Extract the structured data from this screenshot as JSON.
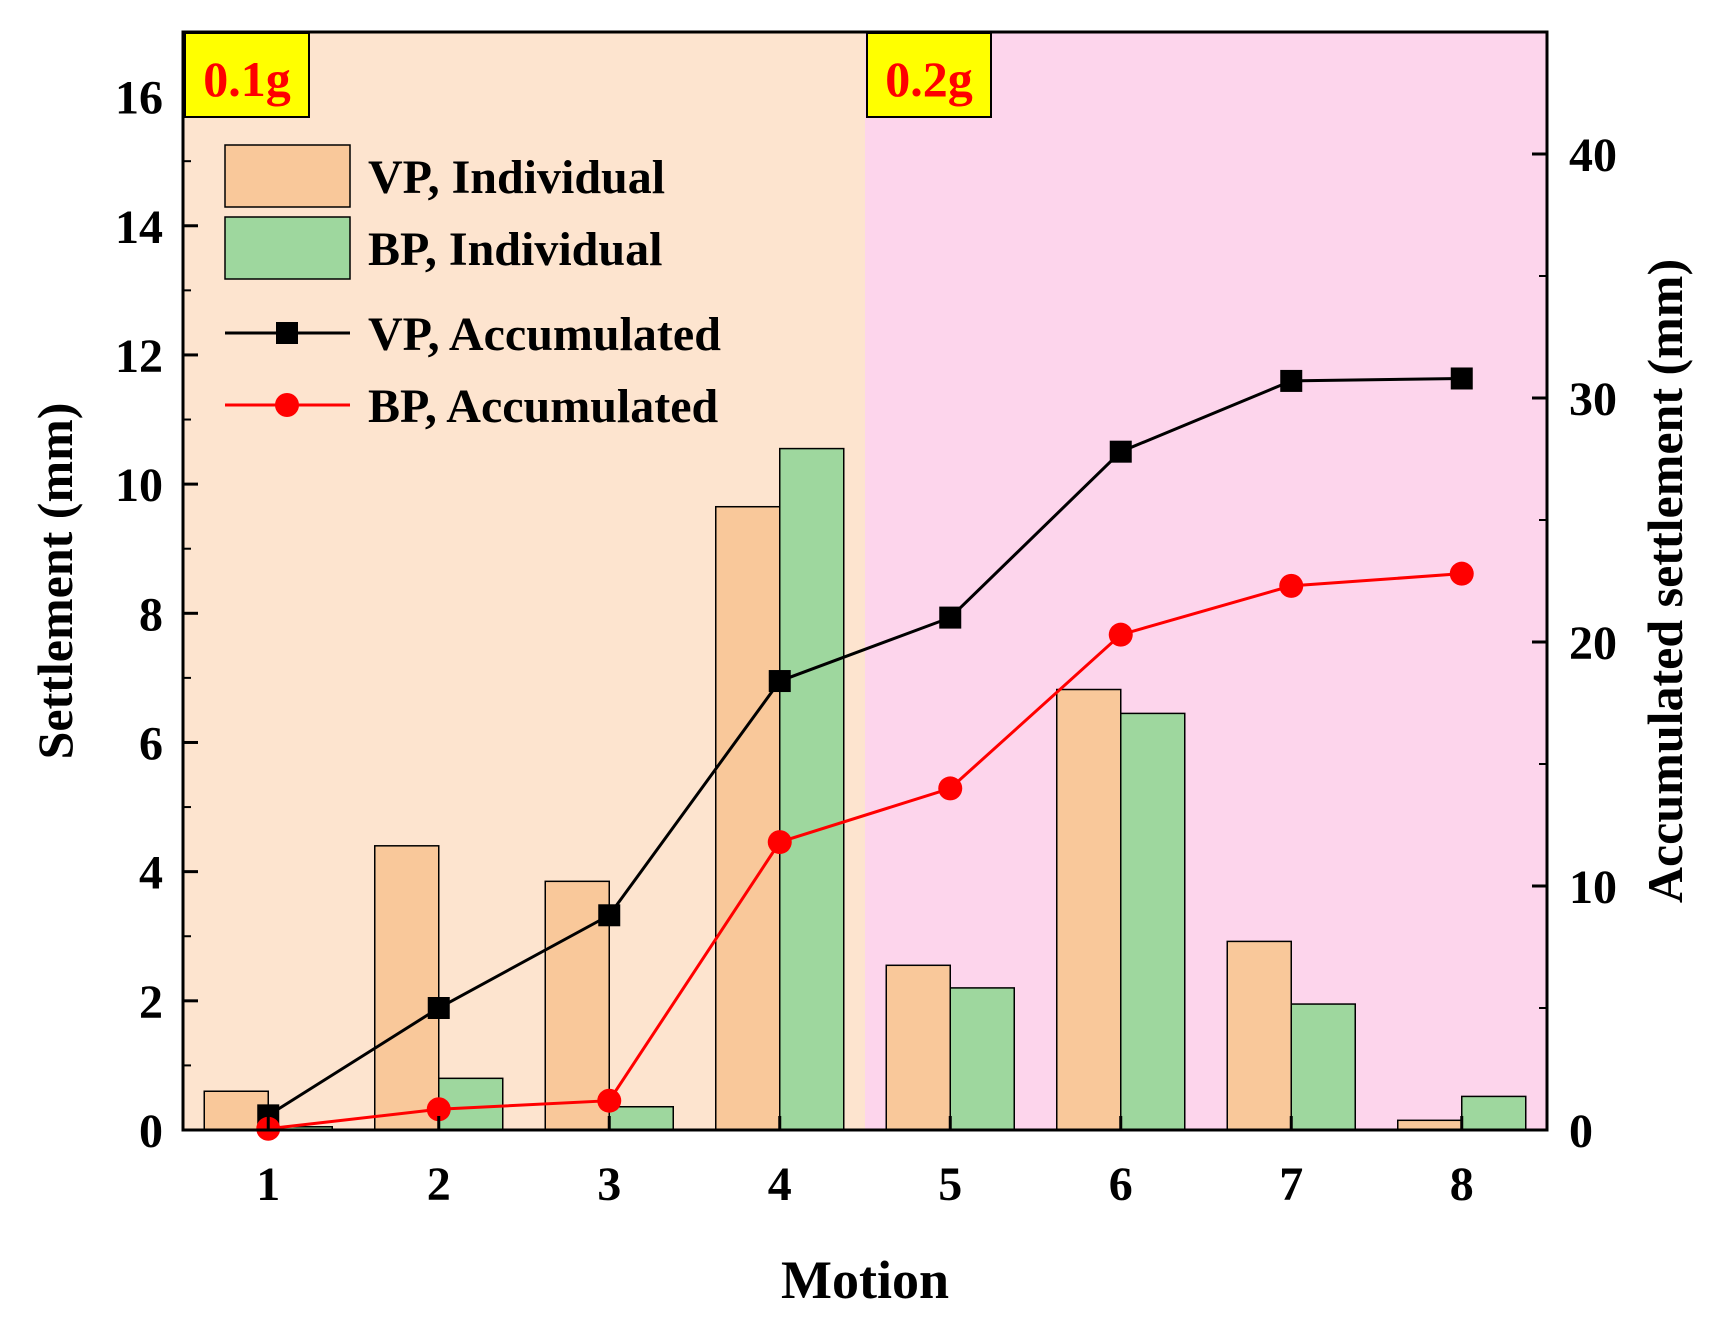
{
  "chart_data": {
    "type": "bar",
    "xlabel": "Motion",
    "ylabel": "Settlement (mm)",
    "y2label": "Accumulated settlement (mm)",
    "categories": [
      "1",
      "2",
      "3",
      "4",
      "5",
      "6",
      "7",
      "8"
    ],
    "ylim": [
      0,
      17
    ],
    "yticks": [
      0,
      2,
      4,
      6,
      8,
      10,
      12,
      14,
      16
    ],
    "y2lim": [
      0,
      45
    ],
    "y2ticks": [
      0,
      10,
      20,
      30,
      40
    ],
    "regions": [
      {
        "label": "0.1g",
        "from": 0.5,
        "to": 4.5,
        "color": "#fde4cf"
      },
      {
        "label": "0.2g",
        "from": 4.5,
        "to": 8.5,
        "color": "#fdd5ec"
      }
    ],
    "bar_series": [
      {
        "name": "VP, Individual",
        "color": "#f9c89a",
        "values": [
          0.6,
          4.4,
          3.85,
          9.65,
          2.55,
          6.82,
          2.92,
          0.15
        ]
      },
      {
        "name": "BP, Individual",
        "color": "#9ed79e",
        "values": [
          0.05,
          0.8,
          0.36,
          10.55,
          2.2,
          6.45,
          1.95,
          0.52
        ]
      }
    ],
    "line_series": [
      {
        "name": "VP,  Accumulated",
        "color": "#000000",
        "marker": "square",
        "axis": "right",
        "values": [
          0.6,
          5.0,
          8.8,
          18.4,
          21.0,
          27.8,
          30.7,
          30.8
        ]
      },
      {
        "name": "BP,  Accumulated",
        "color": "#ff0000",
        "marker": "circle",
        "axis": "right",
        "values": [
          0.05,
          0.85,
          1.2,
          11.8,
          14.0,
          20.3,
          22.3,
          22.8
        ]
      }
    ],
    "legend_position": "top-left"
  }
}
